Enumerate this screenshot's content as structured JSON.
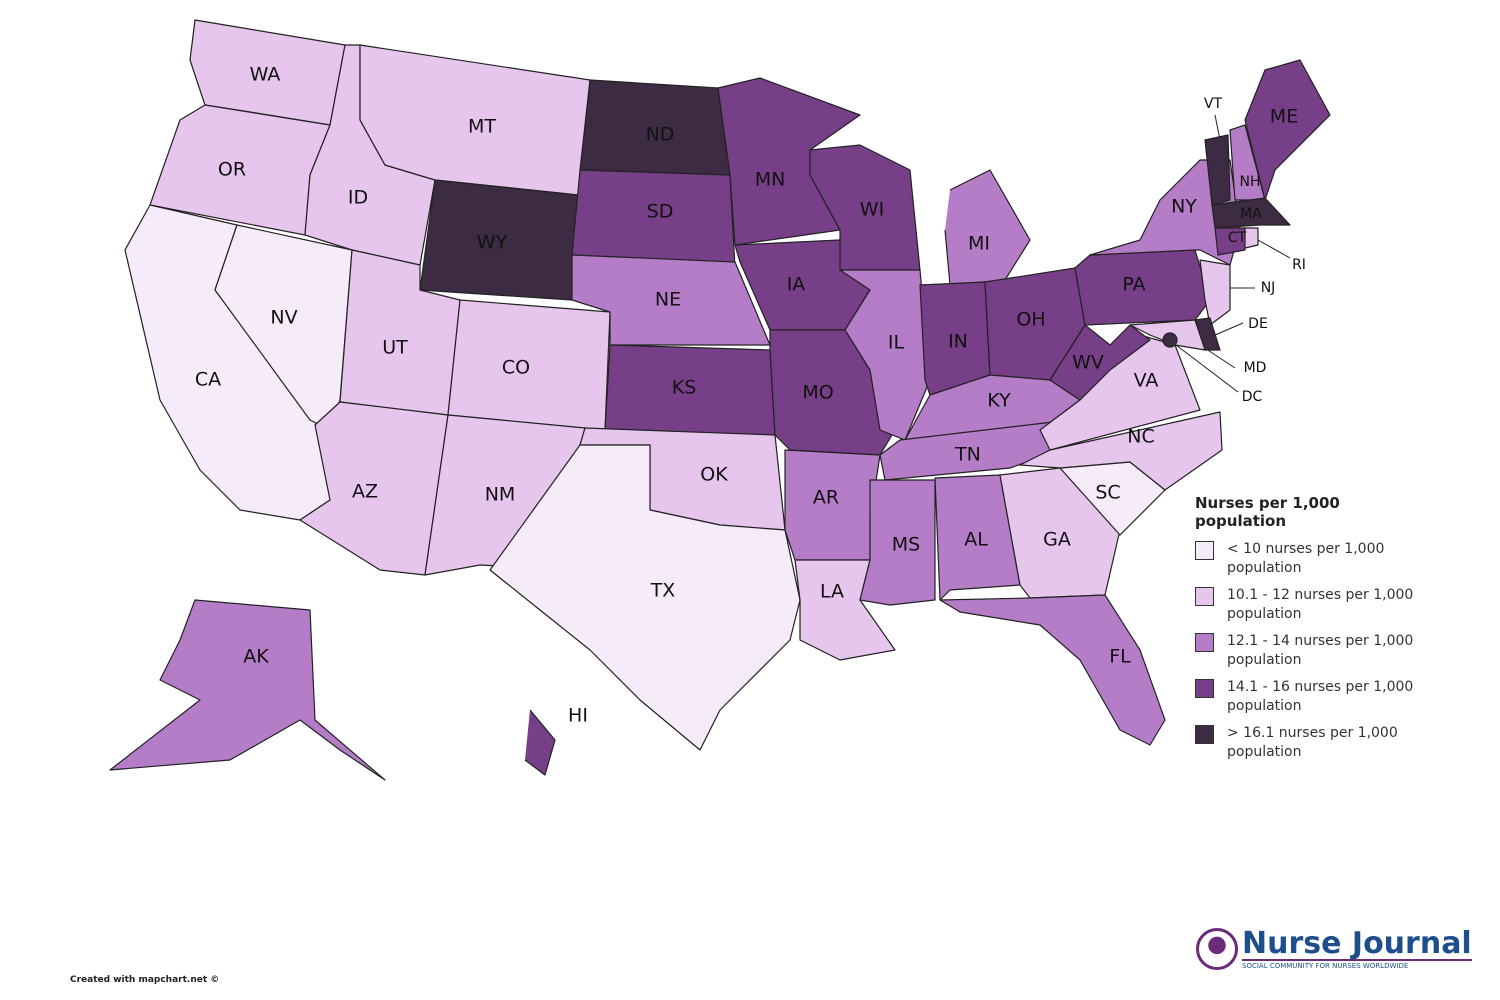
{
  "map": {
    "states": [
      {
        "label": "WA",
        "class": 1
      },
      {
        "label": "OR",
        "class": 1
      },
      {
        "label": "CA",
        "class": 0
      },
      {
        "label": "NV",
        "class": 0
      },
      {
        "label": "ID",
        "class": 1
      },
      {
        "label": "MT",
        "class": 1
      },
      {
        "label": "WY",
        "class": 4
      },
      {
        "label": "UT",
        "class": 1
      },
      {
        "label": "CO",
        "class": 1
      },
      {
        "label": "AZ",
        "class": 1
      },
      {
        "label": "NM",
        "class": 1
      },
      {
        "label": "ND",
        "class": 4
      },
      {
        "label": "SD",
        "class": 3
      },
      {
        "label": "NE",
        "class": 2
      },
      {
        "label": "KS",
        "class": 3
      },
      {
        "label": "OK",
        "class": 1
      },
      {
        "label": "TX",
        "class": 0
      },
      {
        "label": "MN",
        "class": 3
      },
      {
        "label": "IA",
        "class": 3
      },
      {
        "label": "MO",
        "class": 3
      },
      {
        "label": "AR",
        "class": 2
      },
      {
        "label": "LA",
        "class": 1
      },
      {
        "label": "WI",
        "class": 3
      },
      {
        "label": "IL",
        "class": 2
      },
      {
        "label": "MI",
        "class": 2
      },
      {
        "label": "IN",
        "class": 3
      },
      {
        "label": "OH",
        "class": 3
      },
      {
        "label": "KY",
        "class": 2
      },
      {
        "label": "TN",
        "class": 2
      },
      {
        "label": "MS",
        "class": 2
      },
      {
        "label": "AL",
        "class": 2
      },
      {
        "label": "GA",
        "class": 1
      },
      {
        "label": "FL",
        "class": 2
      },
      {
        "label": "SC",
        "class": 0
      },
      {
        "label": "NC",
        "class": 1
      },
      {
        "label": "VA",
        "class": 1
      },
      {
        "label": "WV",
        "class": 3
      },
      {
        "label": "PA",
        "class": 3
      },
      {
        "label": "NY",
        "class": 2
      },
      {
        "label": "VT",
        "class": 4
      },
      {
        "label": "NH",
        "class": 2
      },
      {
        "label": "ME",
        "class": 3
      },
      {
        "label": "MA",
        "class": 4
      },
      {
        "label": "CT",
        "class": 3
      },
      {
        "label": "RI",
        "class": 1
      },
      {
        "label": "NJ",
        "class": 1
      },
      {
        "label": "DE",
        "class": 4
      },
      {
        "label": "MD",
        "class": 1
      },
      {
        "label": "DC",
        "class": 4
      },
      {
        "label": "AK",
        "class": 2
      },
      {
        "label": "HI",
        "class": 3
      }
    ],
    "legend": {
      "title": "Nurses per 1,000 population",
      "items": [
        {
          "label": "< 10 nurses per 1,000 population",
          "color": "#f6ebf8"
        },
        {
          "label": "10.1 - 12 nurses per 1,000 population",
          "color": "#e6c6ec"
        },
        {
          "label": "12.1 - 14 nurses per 1,000 population",
          "color": "#b57cc8"
        },
        {
          "label": "14.1 - 16 nurses per 1,000 population",
          "color": "#773f87"
        },
        {
          "label": "> 16.1 nurses per 1,000 population",
          "color": "#3c2b42"
        }
      ]
    },
    "credit": "Created with mapchart.net ©",
    "logo": {
      "name": "Nurse Journal",
      "tagline": "SOCIAL COMMUNITY FOR NURSES WORLDWIDE"
    }
  }
}
